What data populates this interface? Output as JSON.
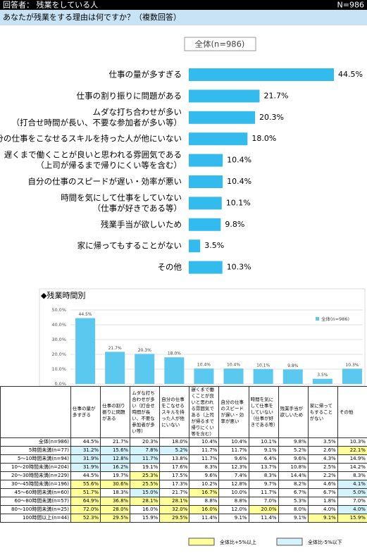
{
  "header": {
    "respondents": "回答者： 残業をしている人",
    "n": "N=986"
  },
  "question": "あなたが残業をする理由は何ですか？（複数回答）",
  "chart_data": [
    {
      "type": "hbar",
      "title": "全体(n=986)",
      "color": "#33bbee",
      "categories": [
        "仕事の量が多すぎる",
        "仕事の割り振りに問題がある",
        [
          "ムダな打ち合わせが多い",
          "（打合せ時間が長い、不要な参加者が多い等）"
        ],
        "自分の仕事をこなせるスキルを持った人が他にいない",
        [
          "遅くまで働くことが良いと思われる雰囲気である",
          "（上司が帰るまで帰りにくい等を含む）"
        ],
        "自分の仕事のスピードが遅い・効率が悪い",
        [
          "時間を気にして仕事をしていない",
          "（仕事が好きである等）"
        ],
        "残業手当が欲しいため",
        "家に帰ってもすることがない",
        "その他"
      ],
      "values": [
        44.5,
        21.7,
        20.3,
        18.0,
        10.4,
        10.4,
        10.1,
        9.8,
        3.5,
        10.3
      ],
      "value_labels": [
        "44.5%",
        "21.7%",
        "20.3%",
        "18.0%",
        "10.4%",
        "10.4%",
        "10.1%",
        "9.8%",
        "3.5%",
        "10.3%"
      ]
    },
    {
      "type": "bar",
      "title": "◆残業時間別",
      "ylim": [
        0,
        50
      ],
      "grid": true,
      "yticks": [
        {
          "value": 0,
          "label": "0.0%"
        },
        {
          "value": 10,
          "label": "10.0%"
        },
        {
          "value": 20,
          "label": "20.0%"
        },
        {
          "value": 30,
          "label": "30.0%"
        },
        {
          "value": 40,
          "label": "40.0%"
        },
        {
          "value": 50,
          "label": "50.0%"
        }
      ],
      "series": [
        {
          "name": "全体(n=986)",
          "color": "#5bc8f0",
          "values": [
            44.5,
            21.7,
            20.3,
            18.0,
            10.4,
            10.4,
            10.1,
            9.8,
            3.5,
            10.3
          ],
          "value_labels": [
            "44.5%",
            "21.7%",
            "20.3%",
            "18.0%",
            "10.4%",
            "10.4%",
            "10.1%",
            "9.8%",
            "3.5%",
            "10.3%"
          ]
        }
      ]
    }
  ],
  "table": {
    "threshold": 5,
    "high_color": "#ffff99",
    "low_color": "#d4f3fb",
    "columns": [
      "仕事の量が多すぎる",
      "仕事の割り振りに問題がある",
      "ムダな打ち合わせが多い（打合せ時間が長い、不要な参加者が多い等）",
      "自分の仕事をこなせるスキルを持った人が他にいない",
      "遅くまで働くことが良いと思われる雰囲気である（上司が帰るまで帰りにくい等を含む）",
      "自分の仕事のスピードが遅い・効率が悪い",
      "時間を気にして仕事をしていない（仕事が好きである等）",
      "残業手当が欲しいため",
      "家に帰ってもすることがない",
      "その他"
    ],
    "rows": [
      {
        "label": "全体(n=986)",
        "values": [
          44.5,
          21.7,
          20.3,
          18.0,
          10.4,
          10.4,
          10.1,
          9.8,
          3.5,
          10.3
        ],
        "value_labels": [
          "44.5%",
          "21.7%",
          "20.3%",
          "18.0%",
          "10.4%",
          "10.4%",
          "10.1%",
          "9.8%",
          "3.5%",
          "10.3%"
        ]
      },
      {
        "label": "5時間未満(n=77)",
        "values": [
          31.2,
          15.6,
          7.8,
          5.2,
          11.7,
          11.7,
          9.1,
          5.2,
          2.6,
          22.1
        ],
        "value_labels": [
          "31.2%",
          "15.6%",
          "7.8%",
          "5.2%",
          "11.7%",
          "11.7%",
          "9.1%",
          "5.2%",
          "2.6%",
          "22.1%"
        ]
      },
      {
        "label": "5～10時間未満(n=94)",
        "values": [
          31.9,
          12.8,
          11.7,
          13.8,
          11.7,
          9.6,
          6.4,
          9.6,
          4.3,
          14.9
        ],
        "value_labels": [
          "31.9%",
          "12.8%",
          "11.7%",
          "13.8%",
          "11.7%",
          "9.6%",
          "6.4%",
          "9.6%",
          "4.3%",
          "14.9%"
        ]
      },
      {
        "label": "10～20時間未満(n=204)",
        "values": [
          31.9,
          16.2,
          19.1,
          17.6,
          8.3,
          12.3,
          13.7,
          10.8,
          2.5,
          14.2
        ],
        "value_labels": [
          "31.9%",
          "16.2%",
          "19.1%",
          "17.6%",
          "8.3%",
          "12.3%",
          "13.7%",
          "10.8%",
          "2.5%",
          "14.2%"
        ]
      },
      {
        "label": "20～30時間未満(n=229)",
        "values": [
          44.5,
          19.7,
          25.3,
          17.5,
          9.6,
          7.4,
          8.3,
          14.4,
          2.2,
          8.3
        ],
        "value_labels": [
          "44.5%",
          "19.7%",
          "25.3%",
          "17.5%",
          "9.6%",
          "7.4%",
          "8.3%",
          "14.4%",
          "2.2%",
          "8.3%"
        ]
      },
      {
        "label": "30～45時間未満(n=196)",
        "values": [
          55.6,
          30.6,
          25.5,
          17.3,
          10.2,
          12.8,
          9.7,
          8.2,
          4.6,
          4.1
        ],
        "value_labels": [
          "55.6%",
          "30.6%",
          "25.5%",
          "17.3%",
          "10.2%",
          "12.8%",
          "9.7%",
          "8.2%",
          "4.6%",
          "4.1%"
        ]
      },
      {
        "label": "45～60時間未満(n=60)",
        "values": [
          51.7,
          18.3,
          15.0,
          21.7,
          16.7,
          10.0,
          11.7,
          6.7,
          6.7,
          5.0
        ],
        "value_labels": [
          "51.7%",
          "18.3%",
          "15.0%",
          "21.7%",
          "16.7%",
          "10.0%",
          "11.7%",
          "6.7%",
          "6.7%",
          "5.0%"
        ]
      },
      {
        "label": "60～80時間未満(n=57)",
        "values": [
          64.9,
          36.8,
          28.1,
          28.1,
          8.8,
          8.8,
          7.0,
          5.3,
          1.8,
          7.0
        ],
        "value_labels": [
          "64.9%",
          "36.8%",
          "28.1%",
          "28.1%",
          "8.8%",
          "8.8%",
          "7.0%",
          "5.3%",
          "1.8%",
          "7.0%"
        ]
      },
      {
        "label": "80～100時間未満(n=25)",
        "values": [
          72.0,
          28.0,
          16.0,
          32.0,
          16.0,
          12.0,
          20.0,
          8.0,
          4.0,
          4.0
        ],
        "value_labels": [
          "72.0%",
          "28.0%",
          "16.0%",
          "32.0%",
          "16.0%",
          "12.0%",
          "20.0%",
          "8.0%",
          "4.0%",
          "4.0%"
        ]
      },
      {
        "label": "100時間以上(n=44)",
        "values": [
          52.3,
          29.5,
          15.9,
          29.5,
          11.4,
          9.1,
          11.4,
          9.1,
          9.1,
          15.9
        ],
        "value_labels": [
          "52.3%",
          "29.5%",
          "15.9%",
          "29.5%",
          "11.4%",
          "9.1%",
          "11.4%",
          "9.1%",
          "9.1%",
          "15.9%"
        ]
      }
    ],
    "legend_high": "全体比+5%以上",
    "legend_low": "全体比-5%以下"
  }
}
